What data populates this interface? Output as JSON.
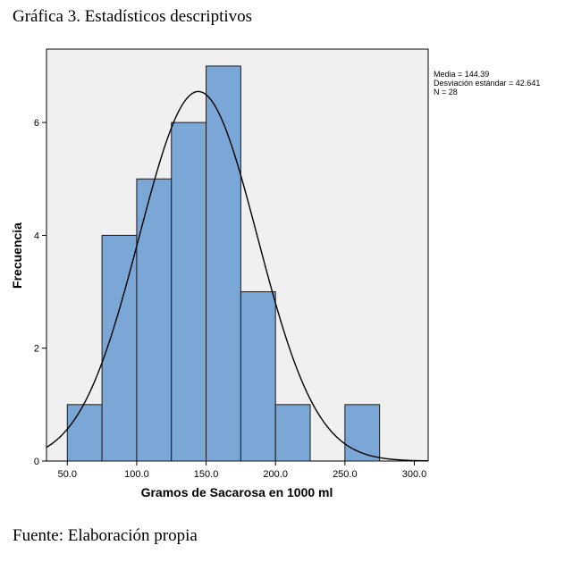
{
  "heading": "Gráfica 3. Estadísticos descriptivos",
  "source_note": "Fuente: Elaboración propia",
  "colors": {
    "plot_background": "#f0f0f0",
    "bar_fill": "#7ba7d6",
    "bar_stroke": "#1a1a1a",
    "curve": "#000000"
  },
  "chart_data": {
    "type": "bar",
    "subtype": "histogram with normal curve",
    "title": "",
    "xlabel": "Gramos de Sacarosa en 1000 ml",
    "ylabel": "Frecuencia",
    "xlim": [
      35,
      310
    ],
    "ylim": [
      0,
      7.3
    ],
    "x_ticks": [
      50,
      100,
      150,
      200,
      250,
      300
    ],
    "x_tick_labels": [
      "50.0",
      "100.0",
      "150.0",
      "200.0",
      "250.0",
      "300.0"
    ],
    "y_ticks": [
      0,
      2,
      4,
      6
    ],
    "y_tick_labels": [
      "0",
      "2",
      "4",
      "6"
    ],
    "bins": [
      {
        "from": 50,
        "to": 75,
        "count": 1
      },
      {
        "from": 75,
        "to": 100,
        "count": 4
      },
      {
        "from": 100,
        "to": 125,
        "count": 5
      },
      {
        "from": 125,
        "to": 150,
        "count": 6
      },
      {
        "from": 150,
        "to": 175,
        "count": 7
      },
      {
        "from": 175,
        "to": 200,
        "count": 3
      },
      {
        "from": 200,
        "to": 225,
        "count": 1
      },
      {
        "from": 225,
        "to": 250,
        "count": 0
      },
      {
        "from": 250,
        "to": 275,
        "count": 1
      }
    ],
    "normal_curve": {
      "mean": 144.39,
      "sd": 42.641,
      "n": 28,
      "bin_width": 25
    },
    "grid": false,
    "legend_position": "right",
    "stats_lines": [
      "Media = 144.39",
      "Desviación estándar = 42.641",
      "N = 28"
    ]
  }
}
